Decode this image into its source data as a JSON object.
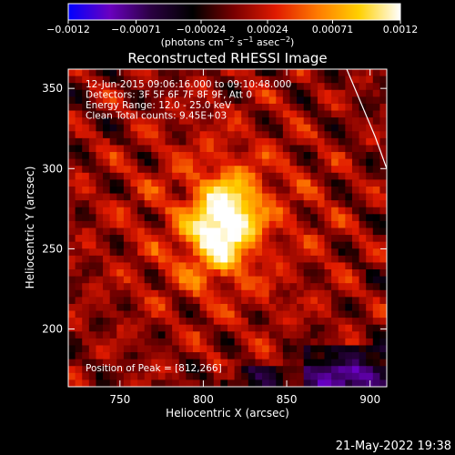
{
  "chart_data": {
    "type": "heatmap",
    "title": "Reconstructed RHESSI Image",
    "xlabel": "Heliocentric X (arcsec)",
    "ylabel": "Heliocentric Y (arcsec)",
    "xlim": [
      719,
      910
    ],
    "ylim": [
      164,
      362
    ],
    "x_ticks": [
      750,
      800,
      850,
      900
    ],
    "y_ticks": [
      200,
      250,
      300,
      350
    ],
    "colorbar": {
      "range": [
        -0.0012,
        0.0012
      ],
      "tick_values": [
        -0.0012,
        -0.00071,
        -0.00024,
        0.00024,
        0.00071,
        0.0012
      ],
      "tick_labels": [
        "−0.0012",
        "−0.00071",
        "−0.00024",
        "0.00024",
        "0.00071",
        "0.0012"
      ],
      "units_main": "(photons cm",
      "units_sup1": "−2",
      "units_mid1": " s",
      "units_sup2": "−1",
      "units_mid2": " asec",
      "units_sup3": "−2",
      "units_end": ")",
      "colors": [
        "#0000ff",
        "#6a00c0",
        "#2a0040",
        "#000000",
        "#7a0000",
        "#e01a00",
        "#ff7a00",
        "#ffd000",
        "#ffffff"
      ]
    },
    "annotations": [
      "12-Jun-2015 09:06:16.000 to 09:10:48.000",
      "Detectors: 3F 5F 6F 7F 8F 9F, Att 0",
      "Energy Range: 12.0 - 25.0 keV",
      "Clean    Total counts: 9.45E+03"
    ],
    "peak_label": "Position of Peak = [812,266]",
    "peak": [
      812,
      266
    ],
    "limb_curve": [
      [
        886,
        362
      ],
      [
        903,
        320
      ],
      [
        910,
        300
      ]
    ],
    "timestamp": "21-May-2022 19:38"
  }
}
